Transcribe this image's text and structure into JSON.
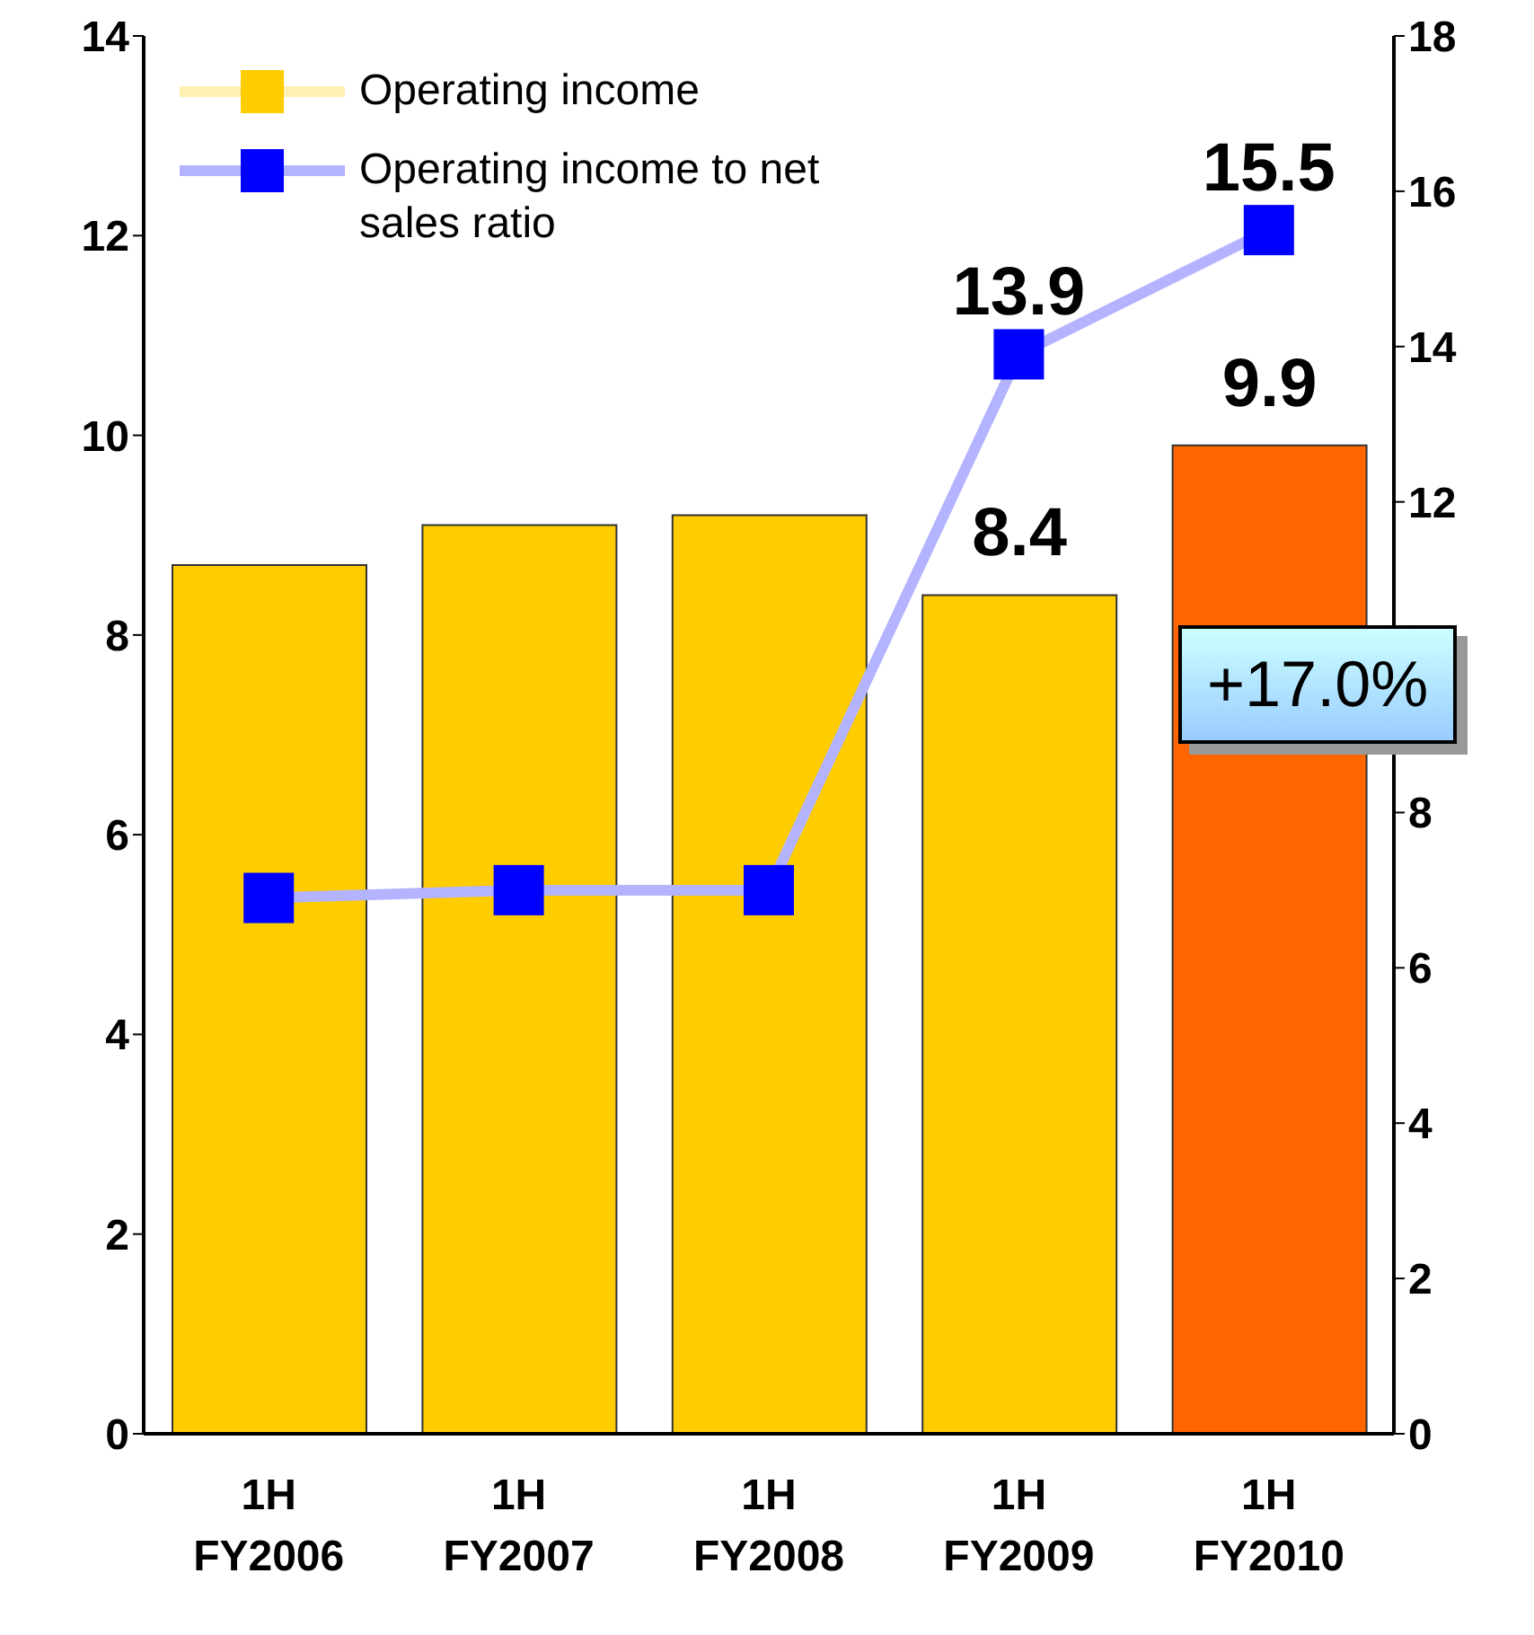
{
  "chart_data": {
    "type": "bar",
    "categories": [
      "1H FY2006",
      "1H FY2007",
      "1H FY2008",
      "1H FY2009",
      "1H FY2010"
    ],
    "series": [
      {
        "name": "Operating income",
        "colors": [
          "#ffcc00",
          "#ffcc00",
          "#ffcc00",
          "#ffcc00",
          "#ff6600"
        ],
        "values": [
          8.7,
          9.1,
          9.2,
          8.4,
          9.9
        ],
        "value_labels": [
          null,
          null,
          null,
          "8.4",
          "9.9"
        ]
      },
      {
        "name": "Operating income to net sales ratio",
        "type": "line",
        "axis": "y2",
        "color": "#0000ff",
        "marker": "square",
        "values": [
          6.9,
          7.0,
          7.0,
          13.9,
          15.5
        ],
        "value_labels": [
          null,
          null,
          null,
          "13.9",
          "15.5"
        ]
      }
    ],
    "ylim": [
      0,
      14
    ],
    "yticks": [
      0,
      2,
      4,
      6,
      8,
      10,
      12,
      14
    ],
    "y2lim": [
      0,
      18
    ],
    "y2ticks": [
      0,
      2,
      4,
      6,
      8,
      12,
      14,
      16,
      18
    ],
    "grid": false,
    "legend": "top left",
    "annotations": [
      "+17.0%"
    ]
  }
}
